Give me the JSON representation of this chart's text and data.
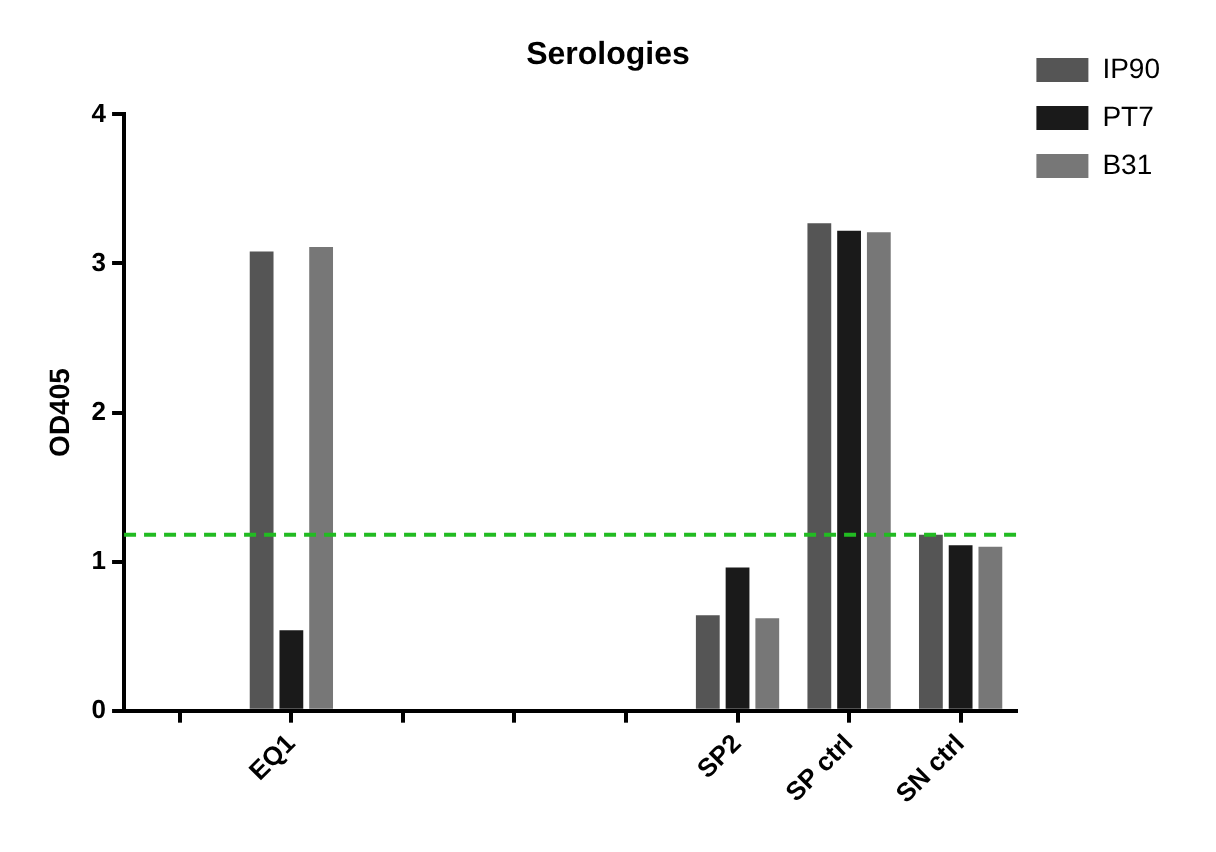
{
  "chart_data": {
    "type": "bar",
    "title": "Serologies",
    "ylabel": "OD405",
    "categories": [
      null,
      "EQ1",
      null,
      null,
      null,
      "SP2",
      "SP ctrl",
      "SN ctrl"
    ],
    "series": [
      {
        "name": "IP90",
        "color": "#555555",
        "values": [
          null,
          3.08,
          null,
          null,
          null,
          0.64,
          3.27,
          1.18
        ]
      },
      {
        "name": "PT7",
        "color": "#1a1a1a",
        "values": [
          null,
          0.54,
          null,
          null,
          null,
          0.96,
          3.22,
          1.11
        ]
      },
      {
        "name": "B31",
        "color": "#777777",
        "values": [
          null,
          3.11,
          null,
          null,
          null,
          0.62,
          3.21,
          1.1
        ]
      }
    ],
    "ylim": [
      0,
      4
    ],
    "yticks": [
      0,
      1,
      2,
      3,
      4
    ],
    "grid": false,
    "legend": "top right",
    "ref_lines": [
      {
        "axis": "y",
        "value": 1.18,
        "color": "#22bb22",
        "line_style": "dashed"
      }
    ]
  }
}
